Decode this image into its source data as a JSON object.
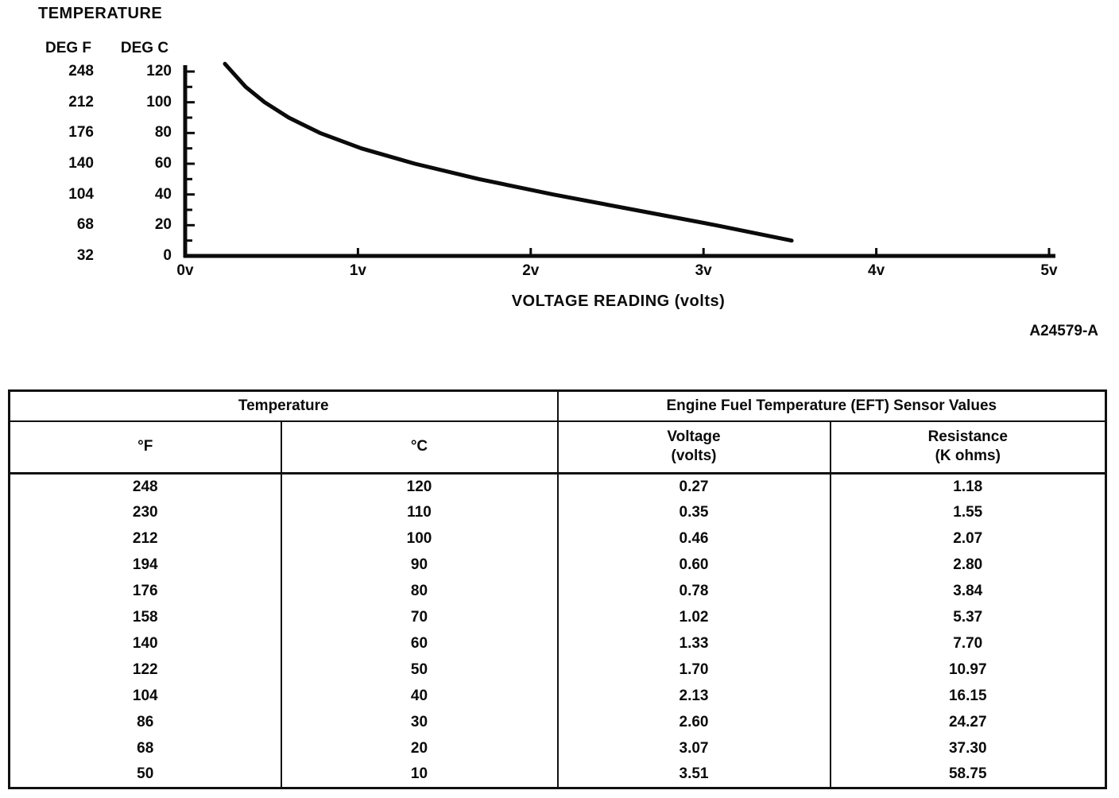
{
  "colors": {
    "ink": "#0b0b0b",
    "background": "#ffffff"
  },
  "chart": {
    "title": "TEMPERATURE",
    "deg_f_header": "DEG F",
    "deg_c_header": "DEG C",
    "x_axis_label": "VOLTAGE READING (volts)",
    "y_ticks_f": [
      "248",
      "212",
      "176",
      "140",
      "104",
      "68",
      "32"
    ],
    "y_ticks_c": [
      "120",
      "100",
      "80",
      "60",
      "40",
      "20",
      "0"
    ],
    "x_ticks": [
      "0v",
      "1v",
      "2v",
      "3v",
      "4v",
      "5v"
    ],
    "figure_code": "A24579-A"
  },
  "chart_data": {
    "type": "line",
    "title": "TEMPERATURE",
    "xlabel": "VOLTAGE READING (volts)",
    "ylabel_left": "TEMPERATURE DEG F",
    "ylabel_right": "TEMPERATURE DEG C",
    "x_volts": [
      0.27,
      0.35,
      0.46,
      0.6,
      0.78,
      1.02,
      1.33,
      1.7,
      2.13,
      2.6,
      3.07,
      3.51
    ],
    "y_deg_c": [
      120,
      110,
      100,
      90,
      80,
      70,
      60,
      50,
      40,
      30,
      20,
      10
    ],
    "y_deg_f": [
      248,
      230,
      212,
      194,
      176,
      158,
      140,
      122,
      104,
      86,
      68,
      50
    ],
    "xlim": [
      0,
      5
    ],
    "ylim_c": [
      0,
      120
    ],
    "ylim_f": [
      32,
      248
    ],
    "grid": false,
    "legend": "none"
  },
  "table": {
    "group_headers": [
      "Temperature",
      "Engine Fuel Temperature (EFT) Sensor Values"
    ],
    "columns": [
      [
        "°F",
        ""
      ],
      [
        "°C",
        ""
      ],
      [
        "Voltage",
        "(volts)"
      ],
      [
        "Resistance",
        "(K ohms)"
      ]
    ],
    "rows": [
      [
        "248",
        "120",
        "0.27",
        "1.18"
      ],
      [
        "230",
        "110",
        "0.35",
        "1.55"
      ],
      [
        "212",
        "100",
        "0.46",
        "2.07"
      ],
      [
        "194",
        "90",
        "0.60",
        "2.80"
      ],
      [
        "176",
        "80",
        "0.78",
        "3.84"
      ],
      [
        "158",
        "70",
        "1.02",
        "5.37"
      ],
      [
        "140",
        "60",
        "1.33",
        "7.70"
      ],
      [
        "122",
        "50",
        "1.70",
        "10.97"
      ],
      [
        "104",
        "40",
        "2.13",
        "16.15"
      ],
      [
        "86",
        "30",
        "2.60",
        "24.27"
      ],
      [
        "68",
        "20",
        "3.07",
        "37.30"
      ],
      [
        "50",
        "10",
        "3.51",
        "58.75"
      ]
    ]
  }
}
